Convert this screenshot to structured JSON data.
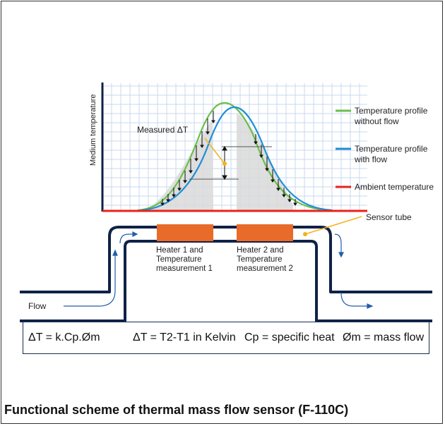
{
  "diagram": {
    "axis_label": "Medium temperature",
    "measured_label": "Measured ΔT",
    "legend": [
      {
        "label_line1": "Temperature profile",
        "label_line2": "without flow",
        "color": "#6abf4b"
      },
      {
        "label_line1": "Temperature profile",
        "label_line2": "with flow",
        "color": "#1f8fd6"
      },
      {
        "label_line1": "Ambient temperature",
        "label_line2": "",
        "color": "#e8221b"
      }
    ],
    "sensor_tube_label": "Sensor tube",
    "heater1": {
      "line1": "Heater 1 and",
      "line2": "Temperature",
      "line3": "measurement 1",
      "color": "#e86b2a"
    },
    "heater2": {
      "line1": "Heater 2 and",
      "line2": "Temperature",
      "line3": "measurement 2",
      "color": "#e86b2a"
    },
    "flow_label": "Flow",
    "tube_color": "#0f2247",
    "pointer_color": "#f2b21b"
  },
  "formulas": {
    "f1": "ΔT = k.Cp.Øm",
    "f2": "ΔT = T2-T1 in Kelvin",
    "f3": "Cp = specific heat",
    "f4": "Øm = mass flow"
  },
  "caption": "Functional scheme of thermal mass flow sensor (F-110C)"
}
